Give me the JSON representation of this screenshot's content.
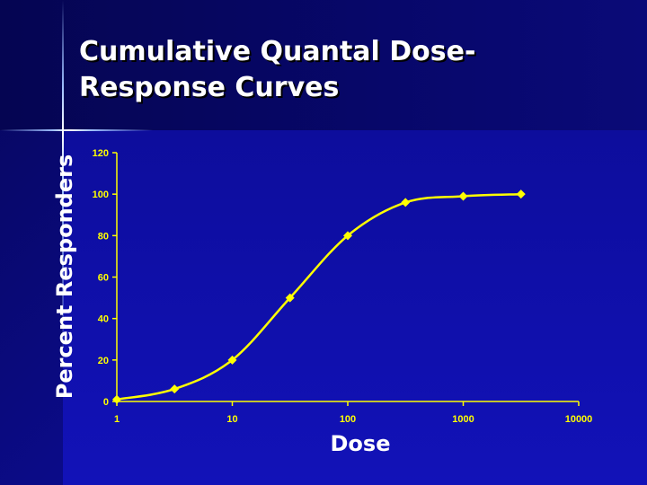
{
  "slide": {
    "title_lines": [
      "Cumulative Quantal Dose-",
      "Response Curves"
    ]
  },
  "colors": {
    "background": "#0a0a7a",
    "series": "#ffff00",
    "axis": "#ffff00",
    "text": "#ffffff"
  },
  "chart_data": {
    "type": "line",
    "title": "",
    "xlabel": "Dose",
    "ylabel": "Percent Responders",
    "xscale": "log",
    "xlim": [
      1,
      10000
    ],
    "ylim": [
      0,
      120
    ],
    "xticks": [
      "1",
      "10",
      "100",
      "1000",
      "10000"
    ],
    "yticks": [
      "0",
      "20",
      "40",
      "60",
      "80",
      "100",
      "120"
    ],
    "grid": false,
    "legend": "none",
    "smooth": true,
    "marker": "diamond",
    "series": [
      {
        "x": [
          1,
          3.16,
          10,
          31.6,
          100,
          316,
          1000,
          3162
        ],
        "y": [
          1,
          6,
          20,
          50,
          80,
          96,
          99,
          100
        ]
      }
    ]
  }
}
